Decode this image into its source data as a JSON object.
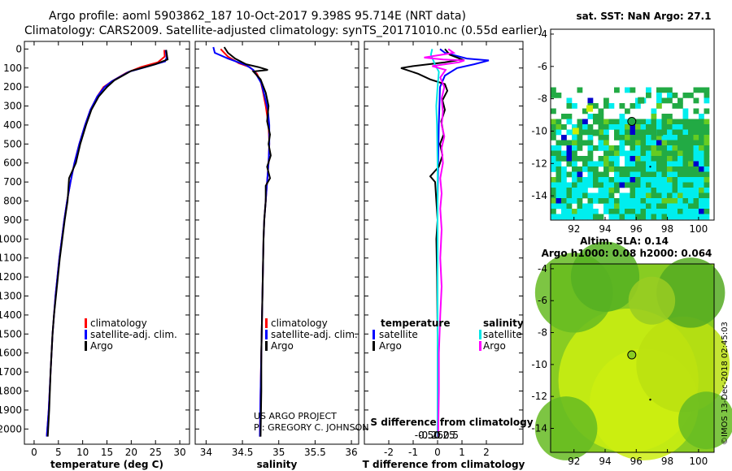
{
  "title": {
    "line1": "Argo profile: aoml 5903862_187 10-Oct-2017 9.398S 95.714E (NRT data)",
    "line2": "Climatology: CARS2009. Satellite-adjusted climatology: synTS_20171010.nc (0.55d earlier)"
  },
  "colors": {
    "climatology": "#ff0000",
    "satellite": "#0000ff",
    "argo": "#000000",
    "sat_salinity": "#00e5e5",
    "argo_salinity": "#ff00ff"
  },
  "credit": {
    "line1": "US ARGO PROJECT",
    "line2": "PI: GREGORY C. JOHNSON"
  },
  "watermark": "©IMOS 13-Dec-2018 02:45:03",
  "chart_data": [
    {
      "id": "temperature",
      "type": "line",
      "xlabel": "temperature (deg C)",
      "xlim": [
        -2,
        32
      ],
      "ylim": [
        2080,
        -40
      ],
      "xticks": [
        0,
        5,
        10,
        15,
        20,
        25,
        30
      ],
      "xtick_labels": [
        "0",
        "5",
        "10",
        "15",
        "20",
        "25",
        "30"
      ],
      "yticks": [
        0,
        100,
        200,
        300,
        400,
        500,
        600,
        700,
        800,
        900,
        1000,
        1100,
        1200,
        1300,
        1400,
        1500,
        1600,
        1700,
        1800,
        1900,
        2000
      ],
      "ytick_labels": [
        "0",
        "100",
        "200",
        "300",
        "400",
        "500",
        "600",
        "700",
        "800",
        "900",
        "1000",
        "1100",
        "1200",
        "1300",
        "1400",
        "1500",
        "1600",
        "1700",
        "1800",
        "1900",
        "2000"
      ],
      "legend": [
        "climatology",
        "satellite-adj. clim.",
        "Argo"
      ],
      "series": [
        {
          "name": "climatology",
          "color": "#ff0000",
          "points": [
            [
              26.8,
              5
            ],
            [
              26.9,
              40
            ],
            [
              25.5,
              70
            ],
            [
              22,
              95
            ],
            [
              19,
              125
            ],
            [
              16,
              170
            ],
            [
              14.3,
              200
            ],
            [
              13,
              250
            ],
            [
              11.6,
              320
            ],
            [
              10.5,
              400
            ],
            [
              9.3,
              500
            ],
            [
              8.3,
              600
            ],
            [
              7.5,
              700
            ],
            [
              6.8,
              800
            ],
            [
              6.2,
              900
            ],
            [
              5.7,
              1000
            ],
            [
              5.2,
              1100
            ],
            [
              4.8,
              1200
            ],
            [
              4.4,
              1300
            ],
            [
              4.1,
              1400
            ],
            [
              3.8,
              1500
            ],
            [
              3.4,
              1700
            ],
            [
              3.0,
              1900
            ],
            [
              2.6,
              2040
            ]
          ]
        },
        {
          "name": "satellite-adj. clim.",
          "color": "#0000ff",
          "points": [
            [
              27.1,
              5
            ],
            [
              27.3,
              45
            ],
            [
              27.0,
              65
            ],
            [
              23,
              95
            ],
            [
              19.5,
              120
            ],
            [
              16,
              170
            ],
            [
              14.5,
              200
            ],
            [
              13,
              250
            ],
            [
              11.6,
              320
            ],
            [
              10.5,
              400
            ],
            [
              9.3,
              500
            ],
            [
              8.3,
              600
            ],
            [
              7.5,
              700
            ],
            [
              6.8,
              800
            ],
            [
              6.2,
              900
            ],
            [
              5.7,
              1000
            ],
            [
              5.2,
              1100
            ],
            [
              4.8,
              1200
            ],
            [
              4.4,
              1300
            ],
            [
              4.1,
              1400
            ],
            [
              3.8,
              1500
            ],
            [
              3.4,
              1700
            ],
            [
              3.0,
              1900
            ],
            [
              2.6,
              2040
            ]
          ]
        },
        {
          "name": "Argo",
          "color": "#000000",
          "points": [
            [
              27.2,
              5
            ],
            [
              27.4,
              40
            ],
            [
              27.5,
              55
            ],
            [
              25,
              80
            ],
            [
              20,
              115
            ],
            [
              16.5,
              165
            ],
            [
              15,
              200
            ],
            [
              13.3,
              250
            ],
            [
              11.8,
              320
            ],
            [
              10.7,
              400
            ],
            [
              9.5,
              500
            ],
            [
              8.6,
              600
            ],
            [
              7.2,
              680
            ],
            [
              6.9,
              800
            ],
            [
              6.3,
              900
            ],
            [
              5.8,
              1000
            ],
            [
              5.3,
              1100
            ],
            [
              4.9,
              1200
            ],
            [
              4.5,
              1300
            ],
            [
              4.1,
              1400
            ],
            [
              3.8,
              1500
            ],
            [
              3.4,
              1700
            ],
            [
              3.1,
              1900
            ],
            [
              2.8,
              2040
            ]
          ]
        }
      ]
    },
    {
      "id": "salinity",
      "type": "line",
      "xlabel": "salinity",
      "xlim": [
        33.85,
        36.1
      ],
      "ylim": [
        2080,
        -40
      ],
      "xticks": [
        34,
        34.5,
        35,
        35.5,
        36
      ],
      "xtick_labels": [
        "34",
        "34.5",
        "35",
        "35.5",
        "36"
      ],
      "legend": [
        "climatology",
        "satellite-adj. clim.",
        "Argo"
      ],
      "series": [
        {
          "name": "climatology",
          "color": "#ff0000",
          "points": [
            [
              34.2,
              0
            ],
            [
              34.3,
              40
            ],
            [
              34.45,
              75
            ],
            [
              34.6,
              95
            ],
            [
              34.7,
              130
            ],
            [
              34.75,
              170
            ],
            [
              34.78,
              220
            ],
            [
              34.82,
              300
            ],
            [
              34.86,
              400
            ],
            [
              34.87,
              500
            ],
            [
              34.86,
              600
            ],
            [
              34.84,
              700
            ],
            [
              34.82,
              800
            ],
            [
              34.8,
              900
            ],
            [
              34.79,
              1000
            ],
            [
              34.78,
              1200
            ],
            [
              34.77,
              1400
            ],
            [
              34.76,
              1600
            ],
            [
              34.75,
              1800
            ],
            [
              34.74,
              2040
            ]
          ]
        },
        {
          "name": "satellite-adj. clim.",
          "color": "#0000ff",
          "points": [
            [
              34.1,
              -10
            ],
            [
              34.12,
              20
            ],
            [
              34.3,
              50
            ],
            [
              34.55,
              85
            ],
            [
              34.65,
              110
            ],
            [
              34.7,
              140
            ],
            [
              34.76,
              180
            ],
            [
              34.8,
              240
            ],
            [
              34.85,
              320
            ],
            [
              34.87,
              400
            ],
            [
              34.87,
              500
            ],
            [
              34.86,
              600
            ],
            [
              34.84,
              700
            ],
            [
              34.82,
              800
            ],
            [
              34.8,
              900
            ],
            [
              34.79,
              1000
            ],
            [
              34.78,
              1200
            ],
            [
              34.77,
              1400
            ],
            [
              34.76,
              1600
            ],
            [
              34.75,
              1800
            ],
            [
              34.74,
              2040
            ]
          ]
        },
        {
          "name": "Argo",
          "color": "#000000",
          "points": [
            [
              34.25,
              -10
            ],
            [
              34.3,
              20
            ],
            [
              34.4,
              50
            ],
            [
              34.55,
              80
            ],
            [
              34.72,
              95
            ],
            [
              34.85,
              110
            ],
            [
              34.65,
              118
            ],
            [
              34.75,
              160
            ],
            [
              34.82,
              230
            ],
            [
              34.86,
              300
            ],
            [
              34.84,
              380
            ],
            [
              34.88,
              450
            ],
            [
              34.86,
              500
            ],
            [
              34.89,
              560
            ],
            [
              34.84,
              620
            ],
            [
              34.88,
              680
            ],
            [
              34.82,
              720
            ],
            [
              34.82,
              800
            ],
            [
              34.8,
              900
            ],
            [
              34.79,
              1000
            ],
            [
              34.78,
              1200
            ],
            [
              34.77,
              1400
            ],
            [
              34.76,
              1600
            ],
            [
              34.76,
              1800
            ],
            [
              34.75,
              2040
            ]
          ]
        }
      ]
    },
    {
      "id": "difference",
      "type": "line",
      "xlabel": "T difference from climatology",
      "xlabel_top": "S difference from climatology",
      "xlim": [
        -3,
        3.5
      ],
      "ylim": [
        2080,
        -40
      ],
      "xticks": [
        -2,
        -1,
        0,
        1,
        2
      ],
      "xtick_labels": [
        "-2",
        "-1",
        "0",
        "1",
        "2"
      ],
      "top_ticks": [
        -0.5,
        -0.25,
        0,
        0.25,
        0.5
      ],
      "top_tick_labels": [
        "-0.5",
        "-0.25",
        "0",
        "0.25",
        "0.5"
      ],
      "legend_left_title": "temperature",
      "legend_right_title": "salinity",
      "legend_left": [
        "satellite",
        "Argo"
      ],
      "legend_right": [
        "satellite",
        "Argo"
      ],
      "series": [
        {
          "name": "T satellite",
          "color": "#0000ff",
          "points": [
            [
              0.1,
              0
            ],
            [
              0.3,
              20
            ],
            [
              1.2,
              50
            ],
            [
              2.1,
              60
            ],
            [
              1.5,
              80
            ],
            [
              0.8,
              100
            ],
            [
              0.3,
              140
            ],
            [
              0.1,
              200
            ],
            [
              0.05,
              400
            ],
            [
              0.0,
              800
            ],
            [
              0.0,
              1200
            ],
            [
              0.0,
              2040
            ]
          ]
        },
        {
          "name": "T Argo",
          "color": "#000000",
          "points": [
            [
              0.3,
              0
            ],
            [
              0.5,
              30
            ],
            [
              1.0,
              55
            ],
            [
              0.3,
              70
            ],
            [
              -1.0,
              90
            ],
            [
              -1.5,
              100
            ],
            [
              -0.8,
              130
            ],
            [
              -0.3,
              160
            ],
            [
              0.3,
              185
            ],
            [
              0.4,
              220
            ],
            [
              0.2,
              270
            ],
            [
              0.3,
              320
            ],
            [
              0.15,
              380
            ],
            [
              0.25,
              450
            ],
            [
              0.1,
              500
            ],
            [
              0.2,
              560
            ],
            [
              0.05,
              620
            ],
            [
              -0.3,
              670
            ],
            [
              -0.1,
              700
            ],
            [
              -0.05,
              800
            ],
            [
              0.0,
              900
            ],
            [
              -0.05,
              1000
            ],
            [
              -0.02,
              1200
            ],
            [
              0.0,
              1500
            ],
            [
              0.02,
              1800
            ],
            [
              0.0,
              2040
            ]
          ]
        },
        {
          "name": "S satellite",
          "color": "#00e5e5",
          "points": [
            [
              -0.2,
              0
            ],
            [
              -0.25,
              30
            ],
            [
              -0.1,
              80
            ],
            [
              0.05,
              120
            ],
            [
              0.0,
              200
            ],
            [
              -0.05,
              300
            ],
            [
              -0.02,
              400
            ],
            [
              0.0,
              600
            ],
            [
              0.0,
              1000
            ],
            [
              0.0,
              1500
            ],
            [
              0.0,
              2040
            ]
          ]
        },
        {
          "name": "S Argo",
          "color": "#ff00ff",
          "points": [
            [
              0.4,
              0
            ],
            [
              0.6,
              20
            ],
            [
              -0.5,
              45
            ],
            [
              0.2,
              55
            ],
            [
              1.0,
              60
            ],
            [
              0.8,
              70
            ],
            [
              -0.2,
              90
            ],
            [
              0.3,
              110
            ],
            [
              0.1,
              150
            ],
            [
              0.25,
              200
            ],
            [
              0.15,
              260
            ],
            [
              0.2,
              330
            ],
            [
              0.15,
              400
            ],
            [
              0.25,
              460
            ],
            [
              0.15,
              520
            ],
            [
              0.2,
              600
            ],
            [
              0.1,
              680
            ],
            [
              0.15,
              760
            ],
            [
              0.1,
              840
            ],
            [
              0.15,
              950
            ],
            [
              0.1,
              1100
            ],
            [
              0.15,
              1250
            ],
            [
              0.1,
              1400
            ],
            [
              0.05,
              1600
            ],
            [
              0.05,
              1800
            ],
            [
              0.02,
              2040
            ]
          ]
        }
      ]
    },
    {
      "id": "sst_map",
      "type": "heatmap",
      "title": "sat. SST: NaN Argo: 27.1",
      "xlim": [
        90.5,
        101
      ],
      "ylim": [
        -15.5,
        -3.7
      ],
      "xticks": [
        92,
        94,
        96,
        98,
        100
      ],
      "xtick_labels": [
        "92",
        "94",
        "96",
        "98",
        "100"
      ],
      "yticks": [
        -4,
        -6,
        -8,
        -10,
        -12,
        -14
      ],
      "ytick_labels": [
        "-4",
        "-6",
        "-8",
        "-10",
        "-12",
        "-14"
      ],
      "marker": {
        "lon": 95.714,
        "lat": -9.398
      }
    },
    {
      "id": "sla_map",
      "type": "heatmap",
      "title": "Altim. SLA: 0.14",
      "subtitle": "Argo h1000: 0.08 h2000: 0.064",
      "xlim": [
        90.5,
        101
      ],
      "ylim": [
        -15.5,
        -3.7
      ],
      "xticks": [
        92,
        94,
        96,
        98,
        100
      ],
      "xtick_labels": [
        "92",
        "94",
        "96",
        "98",
        "100"
      ],
      "yticks": [
        -4,
        -6,
        -8,
        -10,
        -12,
        -14
      ],
      "ytick_labels": [
        "-4",
        "-6",
        "-8",
        "-10",
        "-12",
        "-14"
      ],
      "marker": {
        "lon": 95.714,
        "lat": -9.398
      }
    }
  ]
}
